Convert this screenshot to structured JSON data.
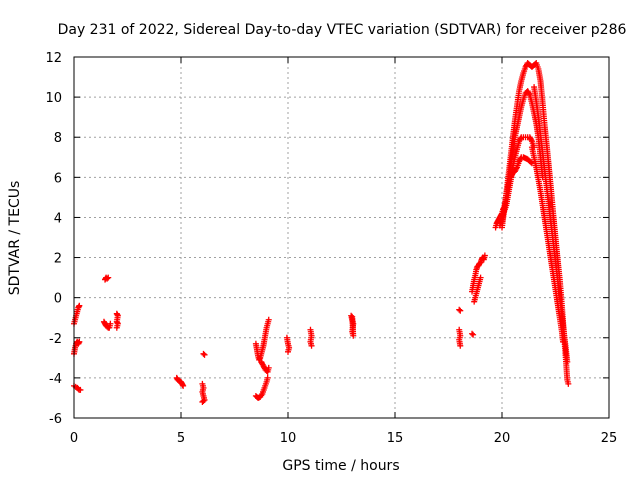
{
  "chart_data": {
    "type": "scatter",
    "title": "Day 231 of 2022, Sidereal Day-to-day VTEC variation (SDTVAR) for receiver p286",
    "xlabel": "GPS time / hours",
    "ylabel": "SDTVAR / TECUs",
    "xlim": [
      0,
      25
    ],
    "ylim": [
      -6,
      12
    ],
    "xticks": [
      0,
      5,
      10,
      15,
      20,
      25
    ],
    "yticks": [
      -6,
      -4,
      -2,
      0,
      2,
      4,
      6,
      8,
      10,
      12
    ],
    "grid": true,
    "marker": "+",
    "series": [
      {
        "name": "SDTVAR",
        "color": "#ff0000",
        "segments": [
          [
            [
              0.0,
              -2.8
            ],
            [
              0.05,
              -2.5
            ],
            [
              0.1,
              -2.3
            ],
            [
              0.15,
              -2.2
            ],
            [
              0.2,
              -2.3
            ],
            [
              0.25,
              -2.2
            ]
          ],
          [
            [
              0.0,
              -1.3
            ],
            [
              0.05,
              -1.1
            ],
            [
              0.1,
              -0.9
            ],
            [
              0.15,
              -0.7
            ],
            [
              0.2,
              -0.5
            ],
            [
              0.25,
              -0.4
            ]
          ],
          [
            [
              0.0,
              -4.4
            ],
            [
              0.08,
              -4.45
            ],
            [
              0.16,
              -4.5
            ],
            [
              0.24,
              -4.6
            ],
            [
              0.3,
              -4.6
            ]
          ],
          [
            [
              1.45,
              0.9
            ],
            [
              1.5,
              1.0
            ],
            [
              1.55,
              0.95
            ],
            [
              1.6,
              1.0
            ]
          ],
          [
            [
              1.4,
              -1.2
            ],
            [
              1.45,
              -1.3
            ],
            [
              1.5,
              -1.4
            ],
            [
              1.55,
              -1.45
            ],
            [
              1.6,
              -1.5
            ],
            [
              1.65,
              -1.5
            ],
            [
              1.7,
              -1.3
            ]
          ],
          [
            [
              2.0,
              -0.8
            ],
            [
              2.05,
              -0.9
            ],
            [
              2.0,
              -1.2
            ],
            [
              2.05,
              -1.3
            ],
            [
              2.0,
              -1.5
            ]
          ],
          [
            [
              4.8,
              -4.0
            ],
            [
              4.85,
              -4.1
            ],
            [
              4.9,
              -4.15
            ],
            [
              5.0,
              -4.2
            ],
            [
              5.05,
              -4.3
            ],
            [
              5.1,
              -4.4
            ]
          ],
          [
            [
              6.05,
              -2.8
            ],
            [
              6.1,
              -2.85
            ]
          ],
          [
            [
              6.0,
              -4.3
            ],
            [
              6.05,
              -4.5
            ],
            [
              6.0,
              -4.7
            ],
            [
              6.05,
              -4.9
            ],
            [
              6.1,
              -5.1
            ],
            [
              6.0,
              -5.2
            ]
          ],
          [
            [
              8.5,
              -2.3
            ],
            [
              8.55,
              -2.6
            ],
            [
              8.6,
              -2.9
            ],
            [
              8.65,
              -3.1
            ],
            [
              8.7,
              -3.0
            ],
            [
              8.75,
              -2.8
            ],
            [
              8.8,
              -2.6
            ],
            [
              8.85,
              -2.4
            ],
            [
              8.9,
              -2.1
            ],
            [
              8.95,
              -1.8
            ],
            [
              9.0,
              -1.5
            ],
            [
              9.05,
              -1.3
            ],
            [
              9.1,
              -1.1
            ]
          ],
          [
            [
              8.5,
              -4.9
            ],
            [
              8.6,
              -5.0
            ],
            [
              8.7,
              -4.95
            ],
            [
              8.8,
              -4.8
            ],
            [
              8.9,
              -4.5
            ],
            [
              9.0,
              -4.2
            ],
            [
              9.05,
              -4.0
            ]
          ],
          [
            [
              8.75,
              -3.2
            ],
            [
              8.85,
              -3.4
            ],
            [
              8.95,
              -3.6
            ],
            [
              9.05,
              -3.7
            ],
            [
              9.1,
              -3.5
            ]
          ],
          [
            [
              9.95,
              -2.0
            ],
            [
              10.0,
              -2.3
            ],
            [
              10.05,
              -2.5
            ],
            [
              10.0,
              -2.7
            ]
          ],
          [
            [
              11.05,
              -1.6
            ],
            [
              11.1,
              -1.9
            ],
            [
              11.05,
              -2.2
            ],
            [
              11.1,
              -2.4
            ]
          ],
          [
            [
              12.95,
              -0.9
            ],
            [
              13.0,
              -1.1
            ],
            [
              13.05,
              -1.3
            ],
            [
              13.0,
              -1.7
            ],
            [
              13.05,
              -1.9
            ],
            [
              13.0,
              -0.95
            ]
          ],
          [
            [
              18.0,
              -0.6
            ],
            [
              18.05,
              -0.65
            ]
          ],
          [
            [
              18.0,
              -1.6
            ],
            [
              18.05,
              -1.9
            ],
            [
              18.0,
              -2.1
            ],
            [
              18.05,
              -2.4
            ]
          ],
          [
            [
              18.6,
              -1.8
            ],
            [
              18.65,
              -1.85
            ]
          ],
          [
            [
              18.6,
              0.3
            ],
            [
              18.65,
              0.6
            ],
            [
              18.7,
              0.9
            ],
            [
              18.75,
              1.1
            ],
            [
              18.8,
              1.4
            ],
            [
              18.85,
              1.55
            ],
            [
              18.9,
              1.6
            ],
            [
              18.95,
              1.7
            ],
            [
              19.0,
              1.75
            ],
            [
              19.05,
              1.9
            ],
            [
              19.1,
              2.0
            ],
            [
              19.15,
              1.9
            ],
            [
              19.2,
              2.1
            ]
          ],
          [
            [
              18.7,
              -0.2
            ],
            [
              18.75,
              0.0
            ],
            [
              18.8,
              0.2
            ],
            [
              18.85,
              0.4
            ],
            [
              18.9,
              0.6
            ],
            [
              18.95,
              0.8
            ],
            [
              19.0,
              1.0
            ]
          ],
          [
            [
              19.7,
              3.5
            ],
            [
              19.75,
              3.7
            ],
            [
              19.8,
              3.8
            ],
            [
              19.85,
              3.9
            ],
            [
              19.9,
              4.0
            ],
            [
              19.95,
              4.1
            ],
            [
              20.0,
              4.2
            ],
            [
              20.05,
              4.4
            ],
            [
              20.1,
              4.5
            ],
            [
              20.15,
              4.7
            ],
            [
              20.2,
              5.0
            ],
            [
              20.25,
              5.3
            ],
            [
              20.3,
              5.6
            ],
            [
              20.35,
              5.8
            ],
            [
              20.4,
              6.0
            ],
            [
              20.5,
              6.2
            ],
            [
              20.6,
              6.3
            ],
            [
              20.7,
              6.5
            ],
            [
              20.8,
              6.8
            ],
            [
              20.9,
              7.0
            ],
            [
              21.0,
              7.0
            ],
            [
              21.1,
              6.95
            ],
            [
              21.2,
              6.9
            ],
            [
              21.3,
              6.8
            ],
            [
              21.4,
              6.7
            ]
          ],
          [
            [
              19.9,
              3.6
            ],
            [
              20.0,
              4.0
            ],
            [
              20.1,
              4.3
            ],
            [
              20.2,
              4.6
            ],
            [
              20.3,
              5.2
            ],
            [
              20.4,
              5.8
            ],
            [
              20.5,
              6.5
            ],
            [
              20.6,
              7.0
            ],
            [
              20.7,
              7.4
            ],
            [
              20.8,
              7.8
            ],
            [
              20.9,
              8.0
            ],
            [
              21.0,
              8.0
            ],
            [
              21.1,
              8.0
            ],
            [
              21.2,
              8.0
            ],
            [
              21.3,
              8.0
            ],
            [
              21.4,
              7.8
            ],
            [
              21.5,
              7.5
            ]
          ],
          [
            [
              20.0,
              3.8
            ],
            [
              20.2,
              5.0
            ],
            [
              20.4,
              6.5
            ],
            [
              20.6,
              8.0
            ],
            [
              20.8,
              9.0
            ],
            [
              20.9,
              9.5
            ],
            [
              21.0,
              9.9
            ],
            [
              21.1,
              10.2
            ],
            [
              21.2,
              10.3
            ],
            [
              21.3,
              10.1
            ],
            [
              21.4,
              9.7
            ],
            [
              21.5,
              9.2
            ],
            [
              21.6,
              8.7
            ],
            [
              21.7,
              8.0
            ],
            [
              21.8,
              7.0
            ],
            [
              21.9,
              6.0
            ]
          ],
          [
            [
              20.0,
              3.5
            ],
            [
              20.2,
              5.2
            ],
            [
              20.4,
              7.0
            ],
            [
              20.6,
              8.8
            ],
            [
              20.8,
              10.3
            ],
            [
              20.9,
              10.8
            ],
            [
              21.0,
              11.2
            ],
            [
              21.1,
              11.5
            ],
            [
              21.2,
              11.7
            ],
            [
              21.3,
              11.6
            ],
            [
              21.4,
              11.5
            ],
            [
              21.5,
              11.6
            ],
            [
              21.6,
              11.7
            ],
            [
              21.7,
              11.4
            ],
            [
              21.8,
              10.8
            ],
            [
              21.9,
              9.7
            ],
            [
              22.0,
              8.5
            ],
            [
              22.1,
              7.5
            ],
            [
              22.2,
              6.4
            ],
            [
              22.3,
              5.3
            ],
            [
              22.4,
              4.1
            ],
            [
              22.5,
              3.0
            ],
            [
              22.6,
              1.9
            ],
            [
              22.7,
              0.9
            ],
            [
              22.8,
              -0.4
            ],
            [
              22.9,
              -1.9
            ],
            [
              23.0,
              -3.3
            ],
            [
              23.05,
              -4.1
            ],
            [
              23.1,
              -4.3
            ]
          ],
          [
            [
              21.5,
              10.5
            ],
            [
              21.6,
              9.8
            ],
            [
              21.7,
              9.0
            ],
            [
              21.8,
              8.1
            ],
            [
              21.9,
              7.2
            ],
            [
              22.0,
              6.3
            ],
            [
              22.1,
              5.4
            ],
            [
              22.2,
              4.5
            ],
            [
              22.3,
              3.6
            ],
            [
              22.4,
              2.7
            ],
            [
              22.5,
              1.8
            ],
            [
              22.6,
              0.9
            ],
            [
              22.7,
              0.0
            ],
            [
              22.8,
              -0.9
            ],
            [
              22.9,
              -1.8
            ],
            [
              23.0,
              -2.7
            ],
            [
              23.05,
              -3.2
            ]
          ],
          [
            [
              21.4,
              7.5
            ],
            [
              21.5,
              7.0
            ],
            [
              21.6,
              6.5
            ],
            [
              21.7,
              5.9
            ],
            [
              21.8,
              5.3
            ],
            [
              21.9,
              4.6
            ],
            [
              22.0,
              3.9
            ],
            [
              22.1,
              3.2
            ],
            [
              22.2,
              2.5
            ],
            [
              22.3,
              1.8
            ],
            [
              22.4,
              1.1
            ],
            [
              22.5,
              0.4
            ],
            [
              22.6,
              -0.3
            ],
            [
              22.7,
              -1.0
            ],
            [
              22.8,
              -1.7
            ],
            [
              22.85,
              -2.2
            ]
          ]
        ]
      }
    ]
  }
}
